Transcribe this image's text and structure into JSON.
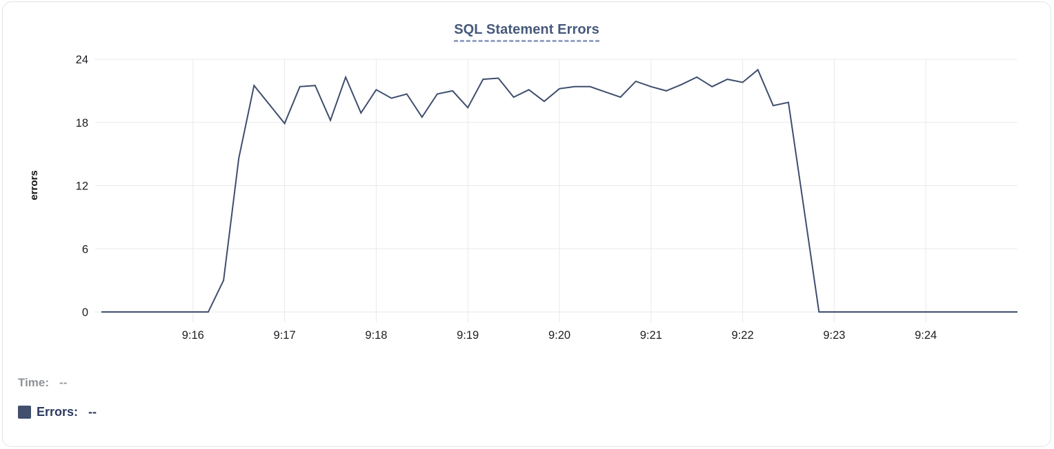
{
  "title": "SQL Statement Errors",
  "tooltip_legend": {
    "time_label": "Time:",
    "time_value": "--",
    "errors_label": "Errors:",
    "errors_value": "--"
  },
  "colors": {
    "line": "#3e4d6d",
    "legend_swatch": "#42506e",
    "title_text": "#46597c",
    "title_underline": "#94a2c2",
    "grid": "#e9e9e9"
  },
  "chart_data": {
    "type": "line",
    "title": "SQL Statement Errors",
    "xlabel": "",
    "ylabel": "errors",
    "ylim": [
      0,
      24
    ],
    "yticks": [
      0,
      6,
      12,
      18,
      24
    ],
    "x_range": [
      "9:15:00",
      "9:25:00"
    ],
    "xticks": [
      "9:16",
      "9:17",
      "9:18",
      "9:19",
      "9:20",
      "9:21",
      "9:22",
      "9:23",
      "9:24"
    ],
    "grid": true,
    "legend_position": "none",
    "series": [
      {
        "name": "Errors",
        "points": [
          [
            "9:15:00",
            0
          ],
          [
            "9:15:10",
            0
          ],
          [
            "9:15:20",
            0
          ],
          [
            "9:15:30",
            0
          ],
          [
            "9:15:40",
            0
          ],
          [
            "9:15:50",
            0
          ],
          [
            "9:16:00",
            0
          ],
          [
            "9:16:10",
            0
          ],
          [
            "9:16:20",
            3
          ],
          [
            "9:16:30",
            14.6
          ],
          [
            "9:16:40",
            21.5
          ],
          [
            "9:16:50",
            19.7
          ],
          [
            "9:17:00",
            17.9
          ],
          [
            "9:17:10",
            21.4
          ],
          [
            "9:17:20",
            21.5
          ],
          [
            "9:17:30",
            18.2
          ],
          [
            "9:17:40",
            22.3
          ],
          [
            "9:17:50",
            18.9
          ],
          [
            "9:18:00",
            21.1
          ],
          [
            "9:18:10",
            20.3
          ],
          [
            "9:18:20",
            20.7
          ],
          [
            "9:18:30",
            18.5
          ],
          [
            "9:18:40",
            20.7
          ],
          [
            "9:18:50",
            21.0
          ],
          [
            "9:19:00",
            19.4
          ],
          [
            "9:19:10",
            22.1
          ],
          [
            "9:19:20",
            22.2
          ],
          [
            "9:19:30",
            20.4
          ],
          [
            "9:19:40",
            21.1
          ],
          [
            "9:19:50",
            20.0
          ],
          [
            "9:20:00",
            21.2
          ],
          [
            "9:20:10",
            21.4
          ],
          [
            "9:20:20",
            21.4
          ],
          [
            "9:20:30",
            20.9
          ],
          [
            "9:20:40",
            20.4
          ],
          [
            "9:20:50",
            21.9
          ],
          [
            "9:21:00",
            21.4
          ],
          [
            "9:21:10",
            21.0
          ],
          [
            "9:21:20",
            21.6
          ],
          [
            "9:21:30",
            22.3
          ],
          [
            "9:21:40",
            21.4
          ],
          [
            "9:21:50",
            22.1
          ],
          [
            "9:22:00",
            21.8
          ],
          [
            "9:22:10",
            23.0
          ],
          [
            "9:22:20",
            19.6
          ],
          [
            "9:22:30",
            19.9
          ],
          [
            "9:22:40",
            10.0
          ],
          [
            "9:22:50",
            0
          ],
          [
            "9:23:00",
            0
          ],
          [
            "9:23:10",
            0
          ],
          [
            "9:23:20",
            0
          ],
          [
            "9:23:30",
            0
          ],
          [
            "9:23:40",
            0
          ],
          [
            "9:23:50",
            0
          ],
          [
            "9:24:00",
            0
          ],
          [
            "9:24:10",
            0
          ],
          [
            "9:24:20",
            0
          ],
          [
            "9:24:30",
            0
          ],
          [
            "9:24:40",
            0
          ],
          [
            "9:24:50",
            0
          ],
          [
            "9:25:00",
            0
          ]
        ]
      }
    ]
  }
}
